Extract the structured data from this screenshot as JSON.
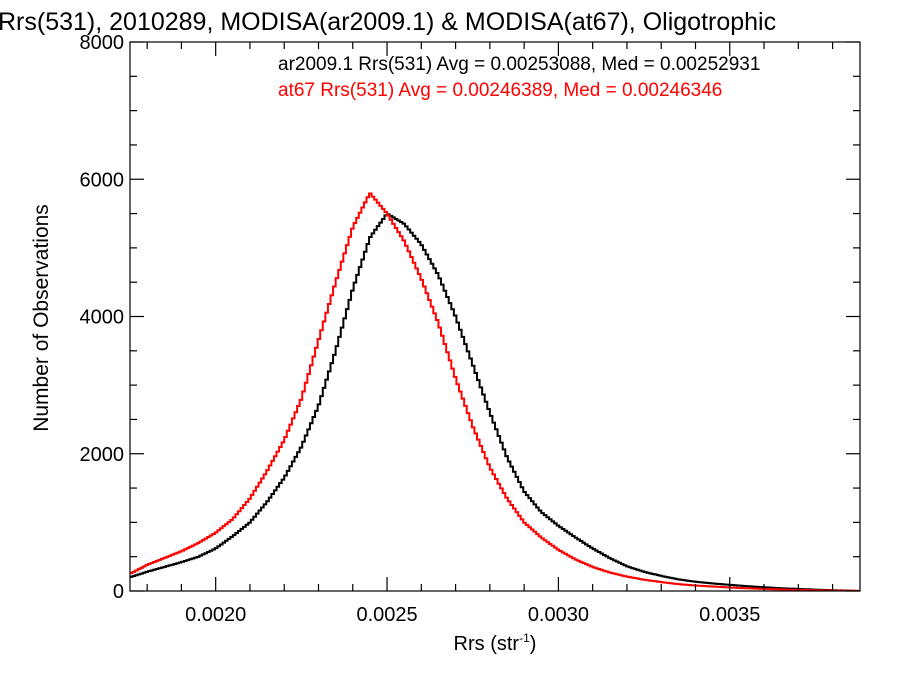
{
  "chart_data": {
    "type": "line",
    "title": "Rrs(531), 2010289, MODISA(ar2009.1) & MODISA(at67), Oligotrophic",
    "xlabel": "Rrs (str",
    "xlabel_sup": "-1",
    "xlabel_close": ")",
    "ylabel": "Number of Observations",
    "xlim": [
      0.00175,
      0.00388
    ],
    "ylim": [
      0,
      8000
    ],
    "xticks": [
      0.002,
      0.0025,
      0.003,
      0.0035
    ],
    "xtick_labels": [
      "0.0020",
      "0.0025",
      "0.0030",
      "0.0035"
    ],
    "yticks": [
      0,
      2000,
      4000,
      6000,
      8000
    ],
    "ytick_labels": [
      "0",
      "2000",
      "4000",
      "6000",
      "8000"
    ],
    "grid": false,
    "legend_placement": "top-right",
    "series": [
      {
        "name": "ar2009.1",
        "color": "#000000",
        "legend_text": "ar2009.1 Rrs(531) Avg = 0.00253088, Med = 0.00252931",
        "x": [
          0.00175,
          0.0018,
          0.00185,
          0.0019,
          0.00195,
          0.002,
          0.00205,
          0.0021,
          0.00215,
          0.0022,
          0.00225,
          0.0023,
          0.00235,
          0.0024,
          0.00245,
          0.0025,
          0.00255,
          0.0026,
          0.00265,
          0.0027,
          0.00275,
          0.0028,
          0.00285,
          0.0029,
          0.00295,
          0.003,
          0.00305,
          0.0031,
          0.00315,
          0.0032,
          0.00325,
          0.0033,
          0.00335,
          0.0034,
          0.00345,
          0.0035,
          0.00355,
          0.0036,
          0.00365,
          0.0037,
          0.00375,
          0.0038,
          0.00385,
          0.00388
        ],
        "y": [
          200,
          280,
          350,
          420,
          500,
          620,
          800,
          1000,
          1300,
          1650,
          2100,
          2700,
          3500,
          4400,
          5150,
          5500,
          5350,
          5050,
          4600,
          4000,
          3300,
          2600,
          1950,
          1450,
          1150,
          950,
          780,
          620,
          480,
          360,
          280,
          220,
          170,
          135,
          110,
          90,
          70,
          55,
          40,
          30,
          20,
          12,
          5,
          0
        ]
      },
      {
        "name": "at67",
        "color": "#ff0000",
        "legend_text": "at67 Rrs(531) Avg = 0.00246389, Med = 0.00246346",
        "x": [
          0.00175,
          0.0018,
          0.00185,
          0.0019,
          0.00195,
          0.002,
          0.00205,
          0.0021,
          0.00215,
          0.0022,
          0.00225,
          0.0023,
          0.00235,
          0.0024,
          0.00245,
          0.0025,
          0.00255,
          0.0026,
          0.00265,
          0.0027,
          0.00275,
          0.0028,
          0.00285,
          0.0029,
          0.00295,
          0.003,
          0.00305,
          0.0031,
          0.00315,
          0.0032,
          0.00325,
          0.0033,
          0.00335,
          0.0034,
          0.00345,
          0.0035,
          0.00355,
          0.0036,
          0.00365,
          0.0037,
          0.00375,
          0.0038,
          0.00385,
          0.00388
        ],
        "y": [
          250,
          380,
          480,
          580,
          700,
          850,
          1050,
          1350,
          1750,
          2200,
          2800,
          3650,
          4500,
          5300,
          5800,
          5500,
          5100,
          4550,
          3900,
          3100,
          2400,
          1800,
          1350,
          1000,
          780,
          600,
          460,
          350,
          270,
          210,
          165,
          130,
          100,
          80,
          65,
          52,
          40,
          30,
          22,
          15,
          10,
          6,
          3,
          0
        ]
      }
    ]
  }
}
